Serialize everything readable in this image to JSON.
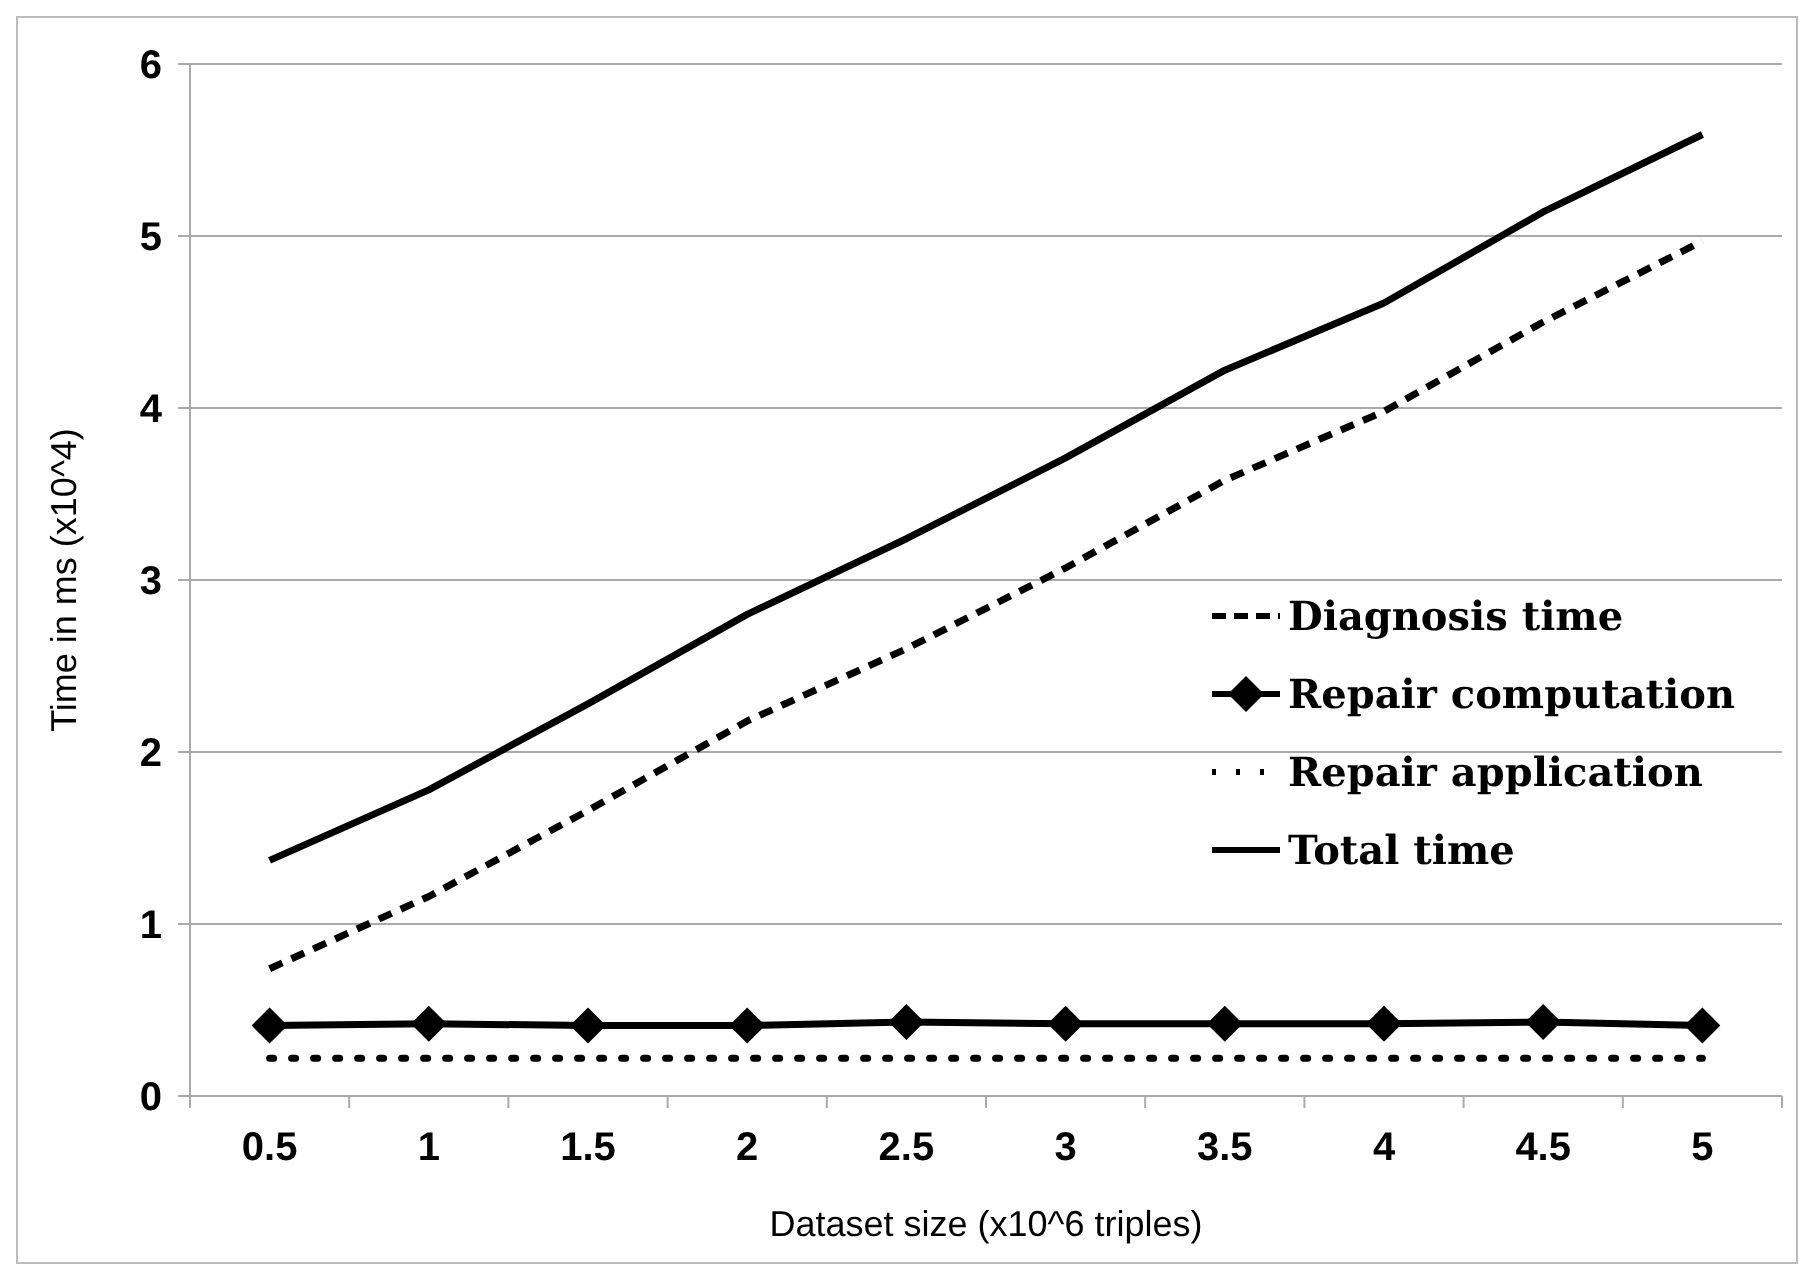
{
  "chart_data": {
    "type": "line",
    "xlabel": "Dataset size (x10^6 triples)",
    "ylabel": "Time in ms (x10^4)",
    "categories": [
      "0.5",
      "1",
      "1.5",
      "2",
      "2.5",
      "3",
      "3.5",
      "4",
      "4.5",
      "5"
    ],
    "ylim": [
      0,
      6
    ],
    "yticks": [
      0,
      1,
      2,
      3,
      4,
      5,
      6
    ],
    "grid": "y",
    "legend": "right",
    "series": [
      {
        "name": "Diagnosis time",
        "color": "#000000",
        "line_style": "dashed",
        "values": [
          0.74,
          1.16,
          1.66,
          2.18,
          2.6,
          3.07,
          3.58,
          3.98,
          4.5,
          4.97
        ]
      },
      {
        "name": "Repair computation",
        "color": "#000000",
        "line_style": "solid",
        "marker": "diamond",
        "values": [
          0.41,
          0.42,
          0.41,
          0.41,
          0.43,
          0.42,
          0.42,
          0.42,
          0.43,
          0.41
        ]
      },
      {
        "name": "Repair application",
        "color": "#000000",
        "line_style": "dotted",
        "values": [
          0.22,
          0.22,
          0.22,
          0.22,
          0.22,
          0.22,
          0.22,
          0.22,
          0.22,
          0.22
        ]
      },
      {
        "name": "Total time",
        "color": "#000000",
        "line_style": "solid",
        "values": [
          1.37,
          1.78,
          2.28,
          2.8,
          3.24,
          3.71,
          4.22,
          4.61,
          5.14,
          5.59
        ]
      }
    ]
  }
}
